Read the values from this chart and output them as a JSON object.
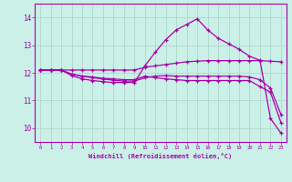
{
  "xlabel": "Windchill (Refroidissement éolien,°C)",
  "xlim": [
    -0.5,
    23.5
  ],
  "ylim": [
    9.5,
    14.5
  ],
  "yticks": [
    10,
    11,
    12,
    13,
    14
  ],
  "xticks": [
    0,
    1,
    2,
    3,
    4,
    5,
    6,
    7,
    8,
    9,
    10,
    11,
    12,
    13,
    14,
    15,
    16,
    17,
    18,
    19,
    20,
    21,
    22,
    23
  ],
  "bg_color": "#caf0e8",
  "line_color": "#aa00aa",
  "grid_color": "#b0d8cc",
  "lines": [
    [
      12.1,
      12.1,
      12.1,
      12.1,
      12.1,
      12.1,
      12.1,
      12.1,
      12.1,
      12.1,
      12.2,
      12.25,
      12.3,
      12.35,
      12.4,
      12.42,
      12.44,
      12.44,
      12.44,
      12.44,
      12.44,
      12.44,
      12.42,
      12.4
    ],
    [
      12.1,
      12.1,
      12.1,
      11.95,
      11.88,
      11.82,
      11.78,
      11.73,
      11.7,
      11.7,
      11.82,
      11.88,
      11.9,
      11.88,
      11.88,
      11.88,
      11.88,
      11.88,
      11.88,
      11.88,
      11.85,
      11.75,
      11.45,
      10.5
    ],
    [
      12.1,
      12.1,
      12.1,
      11.9,
      11.78,
      11.72,
      11.68,
      11.65,
      11.65,
      11.65,
      12.25,
      12.75,
      13.2,
      13.55,
      13.75,
      13.95,
      13.55,
      13.25,
      13.05,
      12.85,
      12.6,
      12.45,
      10.35,
      9.82
    ],
    [
      12.1,
      12.1,
      12.1,
      11.95,
      11.88,
      11.85,
      11.8,
      11.78,
      11.75,
      11.75,
      11.88,
      11.82,
      11.78,
      11.75,
      11.72,
      11.72,
      11.72,
      11.72,
      11.72,
      11.72,
      11.72,
      11.5,
      11.3,
      10.2
    ]
  ]
}
